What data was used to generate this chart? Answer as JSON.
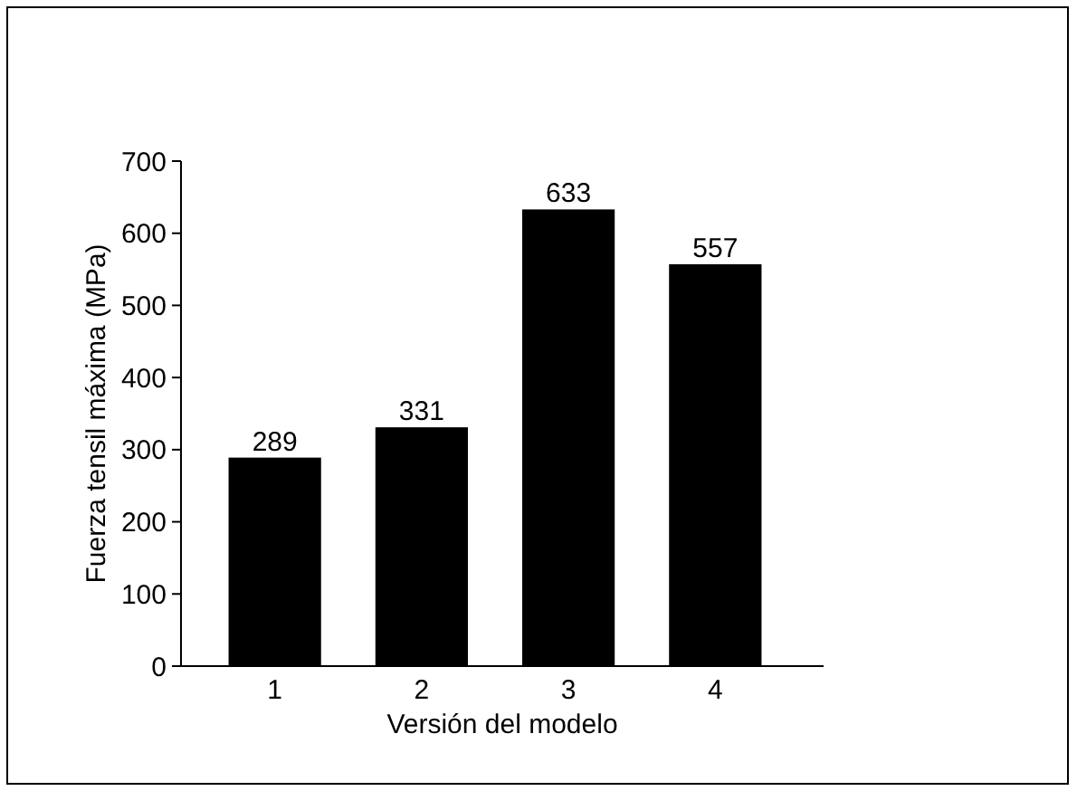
{
  "chart_data": {
    "type": "bar",
    "xlabel": "Versión del modelo",
    "ylabel": "Fuerza tensil máxima (MPa)",
    "categories": [
      "1",
      "2",
      "3",
      "4"
    ],
    "values": [
      289,
      331,
      633,
      557
    ],
    "color": "#000000",
    "ylim": [
      0,
      700
    ],
    "yticks": [
      0,
      100,
      200,
      300,
      400,
      500,
      600,
      700
    ],
    "grid": false,
    "data_labels": true
  }
}
